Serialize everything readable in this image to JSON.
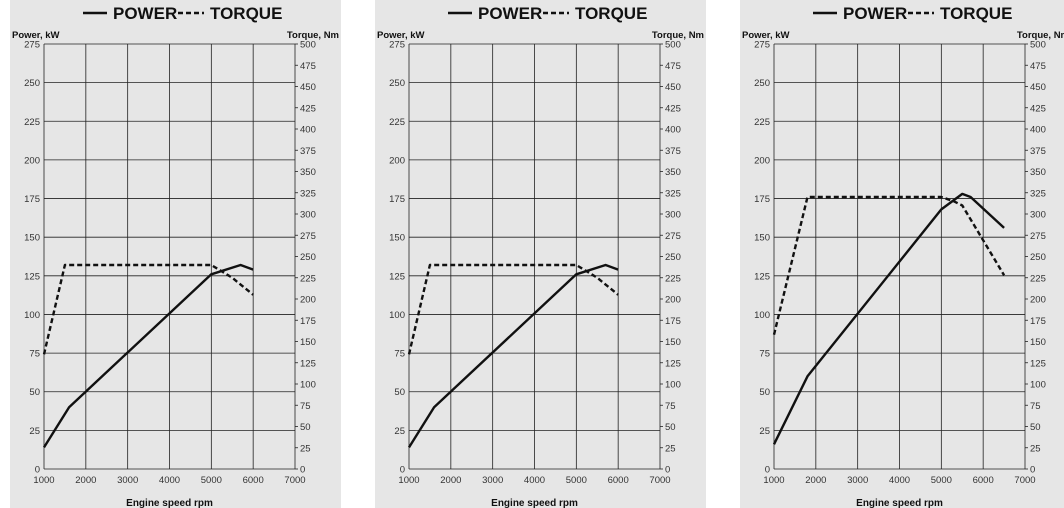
{
  "chart_data": [
    {
      "type": "line",
      "xlabel": "Engine speed rpm",
      "ylabel_left": "Power, kW",
      "ylabel_right": "Torque, Nm",
      "xlim": [
        1000,
        7000
      ],
      "xticks": [
        1000,
        2000,
        3000,
        4000,
        5000,
        6000,
        7000
      ],
      "ylim_left": [
        0,
        275
      ],
      "yticks_left": [
        0,
        25,
        50,
        75,
        100,
        125,
        150,
        175,
        200,
        225,
        250,
        275
      ],
      "ylim_right": [
        0,
        500
      ],
      "yticks_right": [
        0,
        25,
        50,
        75,
        100,
        125,
        150,
        175,
        200,
        225,
        250,
        275,
        300,
        325,
        350,
        375,
        400,
        425,
        450,
        475,
        500
      ],
      "grid": true,
      "legend": "top",
      "series": [
        {
          "name": "POWER",
          "axis": "left",
          "style": "solid",
          "x": [
            1000,
            1600,
            5000,
            5700,
            6000
          ],
          "y": [
            14,
            40,
            126,
            132,
            129
          ]
        },
        {
          "name": "TORQUE",
          "axis": "right",
          "style": "dashed",
          "x": [
            1000,
            1500,
            5000,
            5500,
            6000
          ],
          "y": [
            135,
            240,
            240,
            225,
            205
          ]
        }
      ]
    },
    {
      "type": "line",
      "xlabel": "Engine speed rpm",
      "ylabel_left": "Power, kW",
      "ylabel_right": "Torque, Nm",
      "xlim": [
        1000,
        7000
      ],
      "xticks": [
        1000,
        2000,
        3000,
        4000,
        5000,
        6000,
        7000
      ],
      "ylim_left": [
        0,
        275
      ],
      "yticks_left": [
        0,
        25,
        50,
        75,
        100,
        125,
        150,
        175,
        200,
        225,
        250,
        275
      ],
      "ylim_right": [
        0,
        500
      ],
      "yticks_right": [
        0,
        25,
        50,
        75,
        100,
        125,
        150,
        175,
        200,
        225,
        250,
        275,
        300,
        325,
        350,
        375,
        400,
        425,
        450,
        475,
        500
      ],
      "grid": true,
      "legend": "top",
      "series": [
        {
          "name": "POWER",
          "axis": "left",
          "style": "solid",
          "x": [
            1000,
            1600,
            5000,
            5700,
            6000
          ],
          "y": [
            14,
            40,
            126,
            132,
            129
          ]
        },
        {
          "name": "TORQUE",
          "axis": "right",
          "style": "dashed",
          "x": [
            1000,
            1500,
            5000,
            5500,
            6000
          ],
          "y": [
            135,
            240,
            240,
            225,
            205
          ]
        }
      ]
    },
    {
      "type": "line",
      "xlabel": "Engine speed rpm",
      "ylabel_left": "Power, kW",
      "ylabel_right": "Torque, Nm",
      "xlim": [
        1000,
        7000
      ],
      "xticks": [
        1000,
        2000,
        3000,
        4000,
        5000,
        6000,
        7000
      ],
      "ylim_left": [
        0,
        275
      ],
      "yticks_left": [
        0,
        25,
        50,
        75,
        100,
        125,
        150,
        175,
        200,
        225,
        250,
        275
      ],
      "ylim_right": [
        0,
        500
      ],
      "yticks_right": [
        0,
        25,
        50,
        75,
        100,
        125,
        150,
        175,
        200,
        225,
        250,
        275,
        300,
        325,
        350,
        375,
        400,
        425,
        450,
        475,
        500
      ],
      "grid": true,
      "legend": "top",
      "series": [
        {
          "name": "POWER",
          "axis": "left",
          "style": "solid",
          "x": [
            1000,
            1800,
            5000,
            5500,
            5700,
            6500
          ],
          "y": [
            16,
            60,
            168,
            178,
            176,
            156
          ]
        },
        {
          "name": "TORQUE",
          "axis": "right",
          "style": "dashed",
          "x": [
            1000,
            1800,
            5000,
            5300,
            5500,
            6500
          ],
          "y": [
            158,
            320,
            320,
            315,
            310,
            228
          ]
        }
      ]
    }
  ]
}
